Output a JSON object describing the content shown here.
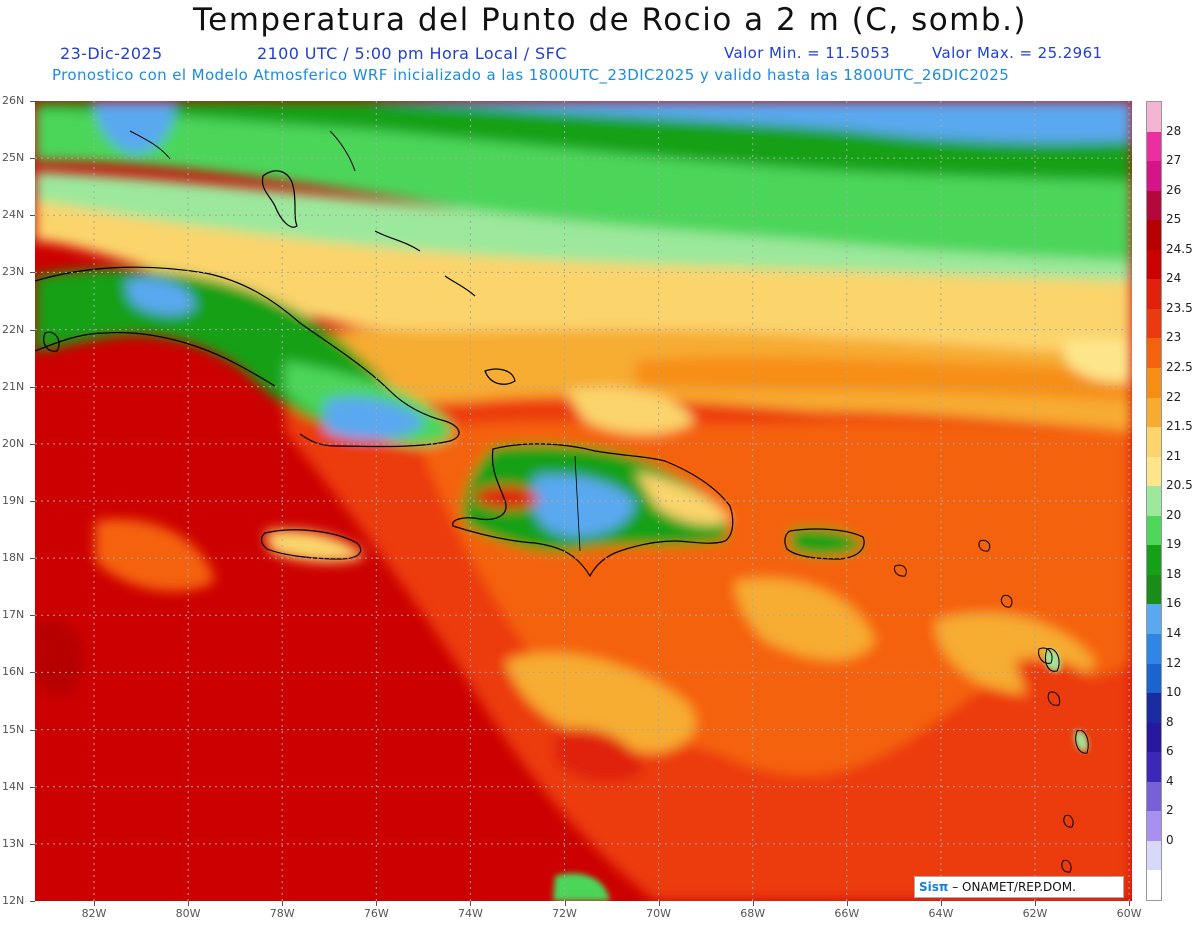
{
  "title": "Temperatura del Punto de Rocio a 2 m (C, somb.)",
  "date_label": "23-Dic-2025",
  "time_label": "2100 UTC / 5:00 pm Hora Local / SFC",
  "min_label": "Valor Min. = 11.5053",
  "max_label": "Valor Max. = 25.2961",
  "forecast_line": "Pronostico con el Modelo Atmosferico WRF inicializado a las 1800UTC_23DIC2025 y valido hasta las  1800UTC_26DIC2025",
  "credit": {
    "logo": "Sisπ",
    "text": " – ONAMET/REP.DOM."
  },
  "colors": {
    "title_blue": "#1f3fd6",
    "subtitle_cyan": "#1a8ce0",
    "coast": "#000000"
  },
  "latitude_labels": [
    "26N",
    "25N",
    "24N",
    "23N",
    "22N",
    "21N",
    "20N",
    "19N",
    "18N",
    "17N",
    "16N",
    "15N",
    "14N",
    "13N",
    "12N"
  ],
  "longitude_labels": [
    "82W",
    "80W",
    "78W",
    "76W",
    "74W",
    "72W",
    "70W",
    "68W",
    "66W",
    "64W",
    "62W",
    "60W"
  ],
  "legend": {
    "labels": [
      "28",
      "27",
      "26",
      "25",
      "24.5",
      "24",
      "23.5",
      "23",
      "22.5",
      "22",
      "21.5",
      "21",
      "20.5",
      "20",
      "19",
      "18",
      "16",
      "14",
      "12",
      "10",
      "8",
      "6",
      "4",
      "2",
      "0"
    ],
    "colors": [
      "#f5b4d4",
      "#ec2fa0",
      "#d6148a",
      "#b4083c",
      "#b60000",
      "#cc0000",
      "#e0200a",
      "#ec3a10",
      "#f5620c",
      "#f78e14",
      "#f7ac30",
      "#fbd46c",
      "#fde68a",
      "#9ce89c",
      "#4cd65a",
      "#16a018",
      "#1a8c18",
      "#5aa8f0",
      "#2e86e6",
      "#1a64d0",
      "#1a2aa0",
      "#2818a0",
      "#3c28b8",
      "#7860d8",
      "#a890f0",
      "#d8d8f8",
      "#ffffff"
    ]
  }
}
